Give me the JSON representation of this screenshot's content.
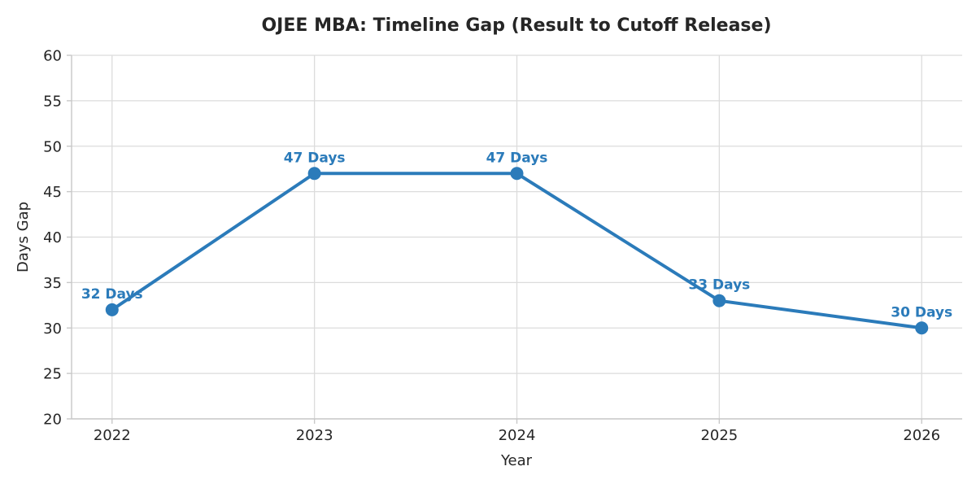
{
  "chart_data": {
    "type": "line",
    "title": "OJEE MBA: Timeline Gap (Result to Cutoff Release)",
    "xlabel": "Year",
    "ylabel": "Days Gap",
    "x": [
      2022,
      2023,
      2024,
      2025,
      2026
    ],
    "categories": [
      "2022",
      "2023",
      "2024",
      "2025",
      "2026"
    ],
    "series": [
      {
        "name": "Days Gap",
        "values": [
          32,
          47,
          47,
          33,
          30
        ]
      }
    ],
    "point_labels": [
      "32 Days",
      "47 Days",
      "47 Days",
      "33 Days",
      "30 Days"
    ],
    "xlim": [
      2021.8,
      2026.2
    ],
    "ylim": [
      20,
      60
    ],
    "yticks": [
      20,
      25,
      30,
      35,
      40,
      45,
      50,
      55,
      60
    ],
    "xticks": [
      2022,
      2023,
      2024,
      2025,
      2026
    ],
    "grid": true,
    "legend_position": "none",
    "style": {
      "line_color": "#2b7bba",
      "marker_color": "#2b7bba",
      "point_label_color": "#2b7bba",
      "grid_color": "#dcdcdc",
      "spine_color": "#c8c8c8",
      "text_color": "#262626",
      "background_color": "#ffffff"
    }
  }
}
